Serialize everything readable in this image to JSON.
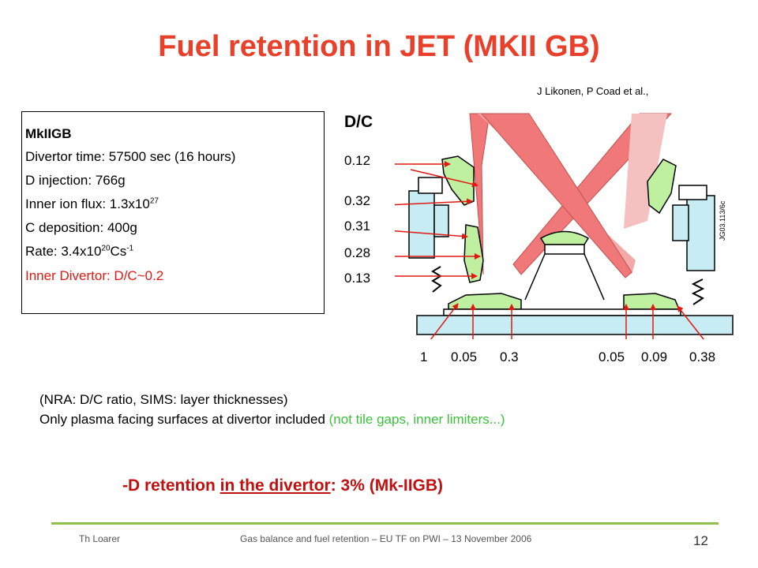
{
  "title": "Fuel retention in JET (MKII GB)",
  "citation": "J Likonen, P Coad et al.,",
  "info": {
    "heading": "MkIIGB",
    "divertor_time": "Divertor time: 57500 sec (16 hours)",
    "d_injection": "D injection: 766g",
    "flux_label": "Inner ion flux: 1.3x10",
    "flux_exp": "27",
    "c_deposition": "C deposition: 400g",
    "rate_label": "Rate: 3.4x10",
    "rate_exp": "20",
    "rate_unit": "Cs",
    "rate_unit_exp": "-1",
    "inner_divertor": "Inner Divertor: D/C~0.2"
  },
  "diagram": {
    "heading": "D/C",
    "side_values": [
      "0.12",
      "0.32",
      "0.31",
      "0.28",
      "0.13"
    ],
    "bottom_values": [
      "1",
      "0.05",
      "0.3",
      "0.05",
      "0.09",
      "0.38"
    ],
    "figure_id": "JG03.113/6c"
  },
  "notes": {
    "line1": "(NRA: D/C ratio, SIMS: layer thicknesses)",
    "line2_main": "Only plasma facing surfaces at divertor included ",
    "line2_green": "(not tile gaps, inner limiters...)"
  },
  "summary": {
    "prefix": "-D retention ",
    "underlined": "in the divertor",
    "suffix": ": 3% (Mk-IIGB)"
  },
  "footer": {
    "author": "Th Loarer",
    "text": "Gas balance and fuel retention – EU TF on PWI – 13 November 2006",
    "page": "12"
  },
  "colors": {
    "title": "#e8402a",
    "highlight_red": "#e01a12",
    "note_green": "#3cc13c",
    "summary": "#c01010",
    "footer_line": "#8fc04a",
    "tile_green": "#bff0a0",
    "structure_blue": "#c8ecf4",
    "plasma_pink": "#f07878"
  }
}
